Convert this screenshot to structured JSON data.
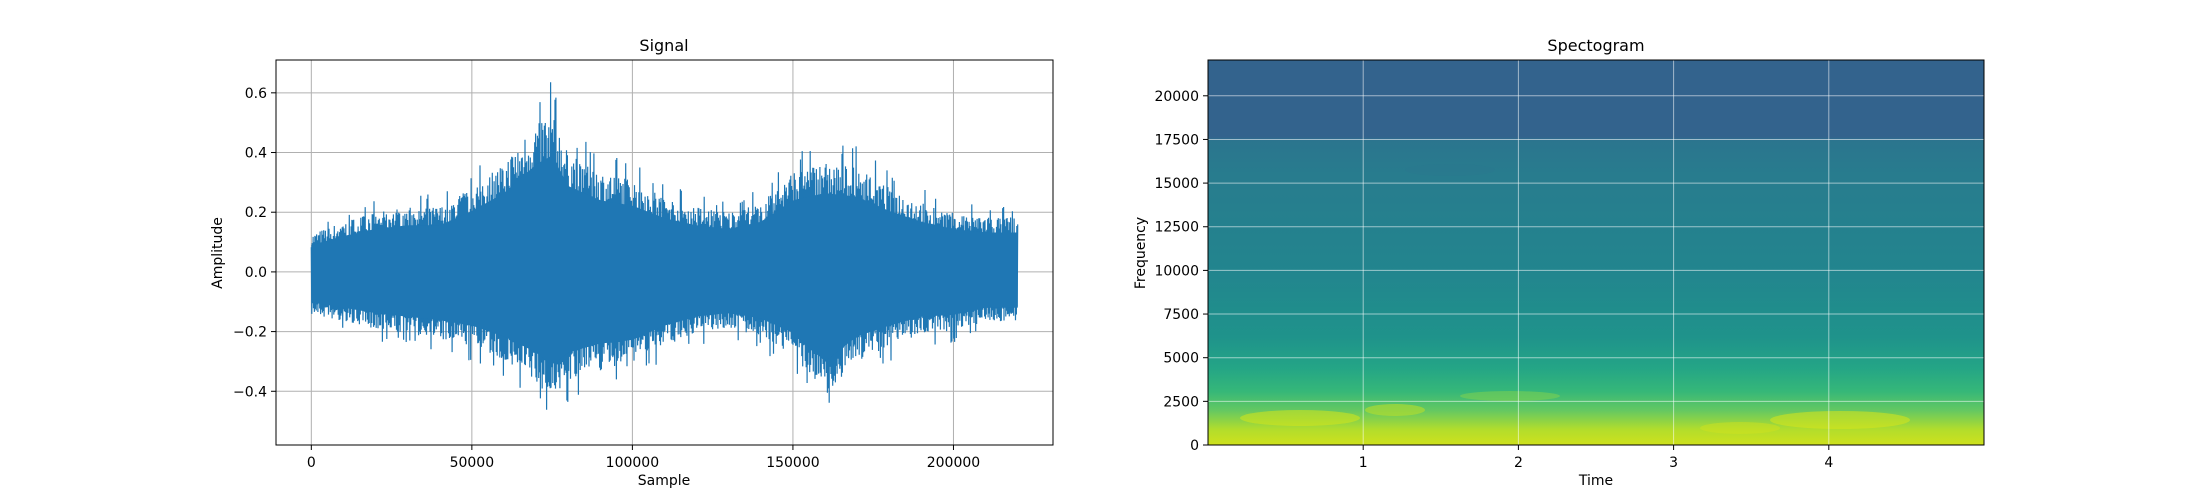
{
  "chart_data": [
    {
      "type": "line",
      "title": "Signal",
      "xlabel": "Sample",
      "ylabel": "Amplitude",
      "xlim": [
        -11000,
        231000
      ],
      "ylim": [
        -0.58,
        0.71
      ],
      "xticks": [
        0,
        50000,
        100000,
        150000,
        200000
      ],
      "xtick_labels": [
        "0",
        "50000",
        "100000",
        "150000",
        "200000"
      ],
      "yticks": [
        -0.4,
        -0.2,
        0.0,
        0.2,
        0.4,
        0.6
      ],
      "ytick_labels": [
        "−0.4",
        "−0.2",
        "0.0",
        "0.2",
        "0.4",
        "0.6"
      ],
      "grid": true,
      "color": "#1f77b4",
      "series": [
        {
          "x": [
            0,
            10000,
            20000,
            30000,
            40000,
            50000,
            60000,
            70000,
            75000,
            80000,
            90000,
            100000,
            110000,
            120000,
            130000,
            140000,
            150000,
            160000,
            170000,
            180000,
            190000,
            200000,
            210000,
            220000
          ],
          "y_max": [
            0.15,
            0.2,
            0.24,
            0.26,
            0.26,
            0.34,
            0.44,
            0.6,
            0.65,
            0.48,
            0.4,
            0.37,
            0.3,
            0.26,
            0.24,
            0.28,
            0.4,
            0.44,
            0.42,
            0.34,
            0.28,
            0.24,
            0.22,
            0.22
          ],
          "y_min": [
            -0.17,
            -0.2,
            -0.23,
            -0.25,
            -0.27,
            -0.3,
            -0.36,
            -0.45,
            -0.52,
            -0.45,
            -0.4,
            -0.38,
            -0.3,
            -0.25,
            -0.23,
            -0.26,
            -0.34,
            -0.5,
            -0.36,
            -0.3,
            -0.25,
            -0.24,
            -0.2,
            -0.2
          ]
        }
      ]
    },
    {
      "type": "heatmap",
      "title": "Spectogram",
      "xlabel": "Time",
      "ylabel": "Frequency",
      "xlim": [
        0,
        5.0
      ],
      "ylim": [
        0,
        22050
      ],
      "xticks": [
        1,
        2,
        3,
        4
      ],
      "xtick_labels": [
        "1",
        "2",
        "3",
        "4"
      ],
      "yticks": [
        0,
        2500,
        5000,
        7500,
        10000,
        12500,
        15000,
        17500,
        20000
      ],
      "ytick_labels": [
        "0",
        "2500",
        "5000",
        "7500",
        "10000",
        "12500",
        "15000",
        "17500",
        "20000"
      ],
      "grid": true,
      "colormap": "viridis"
    }
  ]
}
